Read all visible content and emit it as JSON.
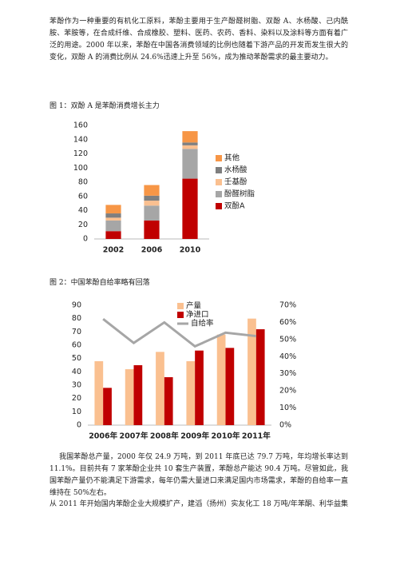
{
  "document": {
    "paragraphs": [
      "苯酚作为一种重要的有机化工原料，苯酚主要用于生产酚醛树脂、双酚 A、水杨酸、己内酰胺、苯胺等，在合成纤维、合成橡胶、塑料、医药、农药、香料、染料以及涂料等方面有着广泛的用途。2000 年以来，苯酚在中国各消费领域的比例也随着下游产品的开发而发生很大的变化，双酚 A 的消费比例从 24.6%迅速上升至 56%，成为推动苯酚需求的最主要动力。",
      "我国苯酚总产量，2000 年仅 24.9 万吨，到 2011 年底已达 79.7 万吨，年均增长率达到 11.1%。目前共有 7 家苯酚企业共 10 套生产装置，苯酚总产能达 90.4 万吨。尽管如此，我国苯酚产量仍不能满足下游需求，每年仍需大量进口来满足国内市场需求，苯酚的自给率一直维持在 50%左右。",
      "从 2011 年开始国内苯酚企业大规模扩产，建滔（扬州）实友化工 18 万吨/年苯酮、利华益集团 35"
    ]
  },
  "chart_data": [
    {
      "type": "bar",
      "stacked": true,
      "title": "图 1：双酚 A 是苯酚消费增长主力",
      "categories": [
        "2002",
        "2006",
        "2010"
      ],
      "series": [
        {
          "name": "双酚A",
          "color": "#c00000",
          "values": [
            11,
            26,
            85
          ]
        },
        {
          "name": "酚醛树脂",
          "color": "#a6a6a6",
          "values": [
            15,
            21,
            42
          ]
        },
        {
          "name": "壬基酚",
          "color": "#fac090",
          "values": [
            4,
            7,
            5
          ]
        },
        {
          "name": "水杨酸",
          "color": "#7f7f7f",
          "values": [
            6,
            7,
            4
          ]
        },
        {
          "name": "其他",
          "color": "#f79646",
          "values": [
            12,
            15,
            16
          ]
        }
      ],
      "ylim": [
        0,
        160
      ],
      "yticks": [
        0,
        20,
        40,
        60,
        80,
        100,
        120,
        140,
        160
      ],
      "grid": false
    },
    {
      "type": "bar",
      "stacked": false,
      "title": "图 2：中国苯酚自给率略有回落",
      "categories": [
        "2006年",
        "2007年",
        "2008年",
        "2009年",
        "2010年",
        "2011年"
      ],
      "series": [
        {
          "name": "产量",
          "color": "#fac090",
          "values": [
            48,
            42,
            55,
            48,
            68,
            80
          ]
        },
        {
          "name": "净进口",
          "color": "#c00000",
          "values": [
            28,
            45,
            36,
            56,
            58,
            72
          ]
        },
        {
          "name": "自给率",
          "color": "#a6a6a6",
          "type": "line",
          "axis": "y2",
          "values": [
            62,
            48,
            60,
            46,
            54,
            52
          ]
        }
      ],
      "ylim": [
        0,
        90
      ],
      "yticks": [
        0,
        10,
        20,
        30,
        40,
        50,
        60,
        70,
        80,
        90
      ],
      "y2lim": [
        0,
        70
      ],
      "y2ticks": [
        {
          "value": 0,
          "label": "0%"
        },
        {
          "value": 10,
          "label": "10%"
        },
        {
          "value": 20,
          "label": "20%"
        },
        {
          "value": 30,
          "label": "30%"
        },
        {
          "value": 40,
          "label": "40%"
        },
        {
          "value": 50,
          "label": "50%"
        },
        {
          "value": 60,
          "label": "60%"
        },
        {
          "value": 70,
          "label": "70%"
        }
      ],
      "grid": false
    }
  ]
}
